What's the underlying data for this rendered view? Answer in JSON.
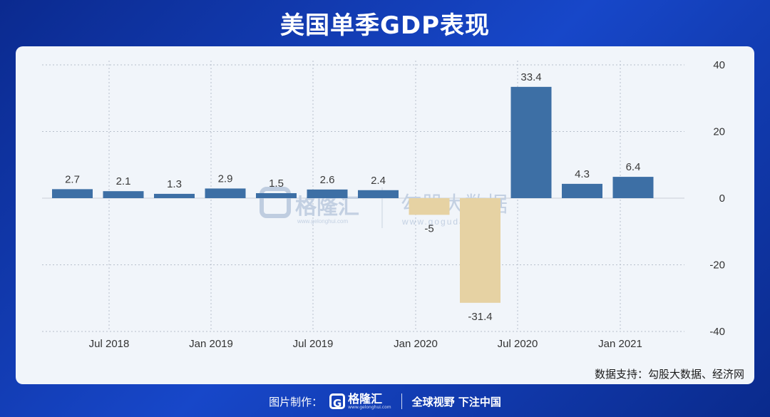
{
  "title": "美国单季GDP表现",
  "source": "数据支持：勾股大数据、经济网",
  "footer": {
    "label": "图片制作：",
    "logo_name": "格隆汇",
    "logo_url": "www.gelonghui.com",
    "slogan": "全球视野 下注中国"
  },
  "watermarks": {
    "left_name": "格隆汇",
    "left_url": "www.gelonghui.com",
    "right_name": "勾股大数据",
    "right_url": "www.gogudata.com"
  },
  "chart_data": {
    "type": "bar",
    "title": "美国单季GDP表现",
    "x_tick_labels": [
      "Jul 2018",
      "Jan 2019",
      "Jul 2019",
      "Jan 2020",
      "Jul 2020",
      "Jan 2021"
    ],
    "y_ticks": [
      40,
      20,
      0,
      -20,
      -40
    ],
    "ylim": [
      -40,
      40
    ],
    "y_axis_position": "right",
    "grid": true,
    "values": [
      2.7,
      2.1,
      1.3,
      2.9,
      1.5,
      2.6,
      2.4,
      -5,
      -31.4,
      33.4,
      4.3,
      6.4
    ],
    "labels": [
      "2.7",
      "2.1",
      "1.3",
      "2.9",
      "1.5",
      "2.6",
      "2.4",
      "-5",
      "-31.4",
      "33.4",
      "4.3",
      "6.4"
    ],
    "colors": {
      "positive": "#3d6fa5",
      "negative": "#e6d2a3",
      "grid": "#b8c0cc",
      "label": "#3a3a3a"
    }
  }
}
